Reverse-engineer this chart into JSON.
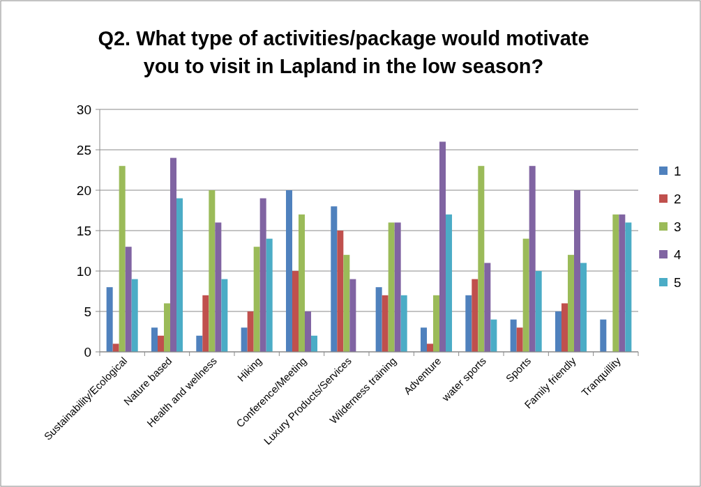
{
  "chart_data": {
    "type": "bar",
    "title": "Q2. What type of activities/package would motivate you to visit in Lapland in the low season?",
    "categories": [
      "Sustainability/Ecological",
      "Nature based",
      "Health and wellness",
      "Hiking",
      "Conference/Meeting",
      "Luxury Products/Services",
      "Wilderness training",
      "Adventure",
      "water sports",
      "Sports",
      "Family friendly",
      "Tranquillity"
    ],
    "series": [
      {
        "name": "1",
        "color": "#4f81bd",
        "values": [
          8,
          3,
          2,
          3,
          20,
          18,
          8,
          3,
          7,
          4,
          5,
          4
        ]
      },
      {
        "name": "2",
        "color": "#c0504d",
        "values": [
          1,
          2,
          7,
          5,
          10,
          15,
          7,
          1,
          9,
          3,
          6,
          0
        ]
      },
      {
        "name": "3",
        "color": "#9bbb59",
        "values": [
          23,
          6,
          20,
          13,
          17,
          12,
          16,
          7,
          23,
          14,
          12,
          17
        ]
      },
      {
        "name": "4",
        "color": "#8064a2",
        "values": [
          13,
          24,
          16,
          19,
          5,
          9,
          16,
          26,
          11,
          23,
          20,
          17
        ]
      },
      {
        "name": "5",
        "color": "#4bacc6",
        "values": [
          9,
          19,
          9,
          14,
          2,
          0,
          7,
          17,
          4,
          10,
          11,
          16
        ]
      }
    ],
    "ylim": [
      0,
      30
    ],
    "yticks": [
      0,
      5,
      10,
      15,
      20,
      25,
      30
    ],
    "grid": "y",
    "legend": "right"
  }
}
